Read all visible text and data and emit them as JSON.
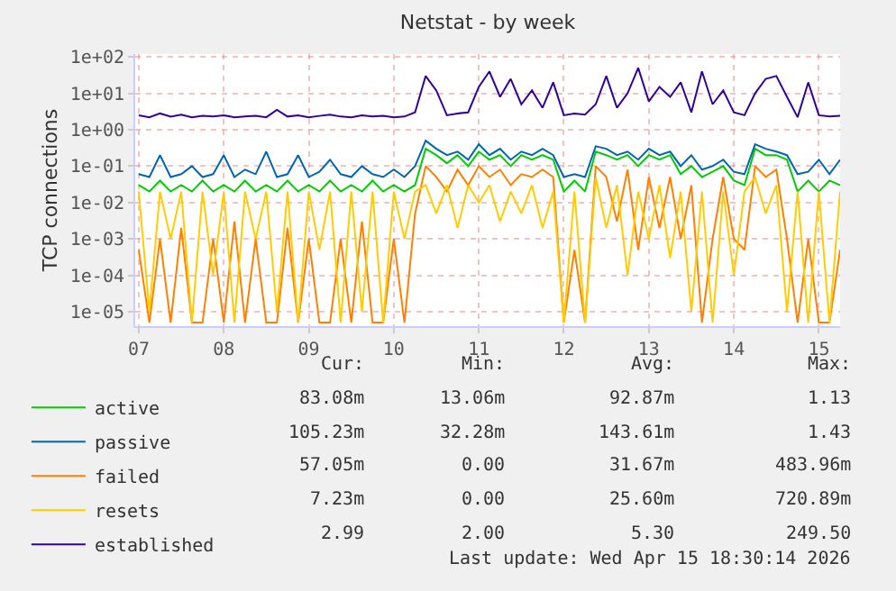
{
  "chart_data": {
    "type": "line",
    "title": "Netstat - by week",
    "ylabel": "TCP connections",
    "log": "y",
    "grid": true,
    "legend": "bottom left",
    "marker": "none",
    "line_style": "solid",
    "x": [
      "2026-04-07T00:00",
      "2026-04-07T03:00",
      "2026-04-07T06:00",
      "2026-04-07T09:00",
      "2026-04-07T12:00",
      "2026-04-07T15:00",
      "2026-04-07T18:00",
      "2026-04-07T21:00",
      "2026-04-08T00:00",
      "2026-04-08T03:00",
      "2026-04-08T06:00",
      "2026-04-08T09:00",
      "2026-04-08T12:00",
      "2026-04-08T15:00",
      "2026-04-08T18:00",
      "2026-04-08T21:00",
      "2026-04-09T00:00",
      "2026-04-09T03:00",
      "2026-04-09T06:00",
      "2026-04-09T09:00",
      "2026-04-09T12:00",
      "2026-04-09T15:00",
      "2026-04-09T18:00",
      "2026-04-09T21:00",
      "2026-04-10T00:00",
      "2026-04-10T03:00",
      "2026-04-10T06:00",
      "2026-04-10T09:00",
      "2026-04-10T12:00",
      "2026-04-10T15:00",
      "2026-04-10T18:00",
      "2026-04-10T21:00",
      "2026-04-11T00:00",
      "2026-04-11T03:00",
      "2026-04-11T06:00",
      "2026-04-11T09:00",
      "2026-04-11T12:00",
      "2026-04-11T15:00",
      "2026-04-11T18:00",
      "2026-04-11T21:00",
      "2026-04-12T00:00",
      "2026-04-12T03:00",
      "2026-04-12T06:00",
      "2026-04-12T09:00",
      "2026-04-12T12:00",
      "2026-04-12T15:00",
      "2026-04-12T18:00",
      "2026-04-12T21:00",
      "2026-04-13T00:00",
      "2026-04-13T03:00",
      "2026-04-13T06:00",
      "2026-04-13T09:00",
      "2026-04-13T12:00",
      "2026-04-13T15:00",
      "2026-04-13T18:00",
      "2026-04-13T21:00",
      "2026-04-14T00:00",
      "2026-04-14T03:00",
      "2026-04-14T06:00",
      "2026-04-14T09:00",
      "2026-04-14T12:00",
      "2026-04-14T15:00",
      "2026-04-14T18:00",
      "2026-04-14T21:00",
      "2026-04-15T00:00",
      "2026-04-15T03:00",
      "2026-04-15T06:00"
    ],
    "xlim": [
      "2026-04-06T23:00",
      "2026-04-15T06:00"
    ],
    "xticks": [
      {
        "value": "2026-04-07",
        "label": "07"
      },
      {
        "value": "2026-04-08",
        "label": "08"
      },
      {
        "value": "2026-04-09",
        "label": "09"
      },
      {
        "value": "2026-04-10",
        "label": "10"
      },
      {
        "value": "2026-04-11",
        "label": "11"
      },
      {
        "value": "2026-04-12",
        "label": "12"
      },
      {
        "value": "2026-04-13",
        "label": "13"
      },
      {
        "value": "2026-04-14",
        "label": "14"
      },
      {
        "value": "2026-04-15",
        "label": "15"
      }
    ],
    "ylim": [
      4e-06,
      120
    ],
    "yticks": [
      {
        "value": 1e-05,
        "label": "1e-05"
      },
      {
        "value": 0.0001,
        "label": "1e-04"
      },
      {
        "value": 0.001,
        "label": "1e-03"
      },
      {
        "value": 0.01,
        "label": "1e-02"
      },
      {
        "value": 0.1,
        "label": "1e-01"
      },
      {
        "value": 1,
        "label": "1e+00"
      },
      {
        "value": 10,
        "label": "1e+01"
      },
      {
        "value": 100,
        "label": "1e+02"
      }
    ],
    "series": [
      {
        "name": "active",
        "color": "#00cc00",
        "values": [
          0.03,
          0.02,
          0.04,
          0.02,
          0.03,
          0.02,
          0.04,
          0.02,
          0.03,
          0.02,
          0.04,
          0.02,
          0.03,
          0.02,
          0.04,
          0.02,
          0.03,
          0.02,
          0.04,
          0.02,
          0.03,
          0.02,
          0.04,
          0.02,
          0.03,
          0.02,
          0.03,
          0.3,
          0.2,
          0.12,
          0.2,
          0.1,
          0.25,
          0.15,
          0.2,
          0.1,
          0.2,
          0.15,
          0.2,
          0.15,
          0.02,
          0.04,
          0.02,
          0.25,
          0.2,
          0.15,
          0.2,
          0.1,
          0.2,
          0.15,
          0.2,
          0.06,
          0.1,
          0.05,
          0.07,
          0.1,
          0.04,
          0.03,
          0.3,
          0.2,
          0.2,
          0.15,
          0.02,
          0.04,
          0.02,
          0.04,
          0.03
        ]
      },
      {
        "name": "passive",
        "color": "#0066b3",
        "values": [
          0.06,
          0.05,
          0.2,
          0.05,
          0.06,
          0.1,
          0.05,
          0.06,
          0.2,
          0.05,
          0.08,
          0.06,
          0.25,
          0.05,
          0.06,
          0.2,
          0.05,
          0.07,
          0.15,
          0.06,
          0.05,
          0.1,
          0.06,
          0.05,
          0.08,
          0.05,
          0.1,
          0.5,
          0.3,
          0.2,
          0.25,
          0.15,
          0.4,
          0.2,
          0.3,
          0.15,
          0.25,
          0.2,
          0.3,
          0.2,
          0.05,
          0.06,
          0.05,
          0.35,
          0.3,
          0.2,
          0.25,
          0.15,
          0.3,
          0.2,
          0.25,
          0.1,
          0.2,
          0.08,
          0.1,
          0.15,
          0.07,
          0.06,
          0.4,
          0.3,
          0.25,
          0.2,
          0.06,
          0.07,
          0.15,
          0.06,
          0.15
        ]
      },
      {
        "name": "failed",
        "color": "#ff8000",
        "values": [
          0.0005,
          5e-06,
          0.001,
          5e-06,
          0.002,
          5e-06,
          5e-06,
          0.001,
          5e-06,
          0.003,
          5e-06,
          0.001,
          5e-06,
          5e-06,
          0.002,
          5e-06,
          0.001,
          5e-06,
          5e-06,
          0.001,
          5e-06,
          0.003,
          5e-06,
          5e-06,
          0.001,
          5e-06,
          0.005,
          0.1,
          0.05,
          0.02,
          0.08,
          0.03,
          0.1,
          0.05,
          0.08,
          0.03,
          0.06,
          0.05,
          0.08,
          0.05,
          5e-06,
          0.0005,
          5e-06,
          0.1,
          0.05,
          0.003,
          0.08,
          0.0005,
          0.05,
          0.002,
          0.05,
          0.001,
          0.03,
          5e-06,
          0.001,
          0.05,
          0.001,
          0.0005,
          0.1,
          0.05,
          0.08,
          0.001,
          5e-06,
          0.001,
          5e-06,
          5e-06,
          0.0005
        ]
      },
      {
        "name": "resets",
        "color": "#ffcc00",
        "values": [
          0.02,
          1e-05,
          0.02,
          0.001,
          0.02,
          5e-06,
          0.02,
          0.0001,
          0.02,
          5e-06,
          0.02,
          0.001,
          0.02,
          1e-05,
          0.02,
          5e-06,
          0.02,
          0.0005,
          0.02,
          5e-06,
          0.02,
          1e-05,
          0.02,
          5e-06,
          0.02,
          0.001,
          0.02,
          0.03,
          0.005,
          0.03,
          0.002,
          0.03,
          0.01,
          0.03,
          0.003,
          0.02,
          0.005,
          0.03,
          0.002,
          0.02,
          5e-06,
          0.02,
          5e-06,
          0.05,
          0.002,
          0.03,
          0.0001,
          0.02,
          0.001,
          0.03,
          0.0003,
          0.02,
          1e-05,
          0.02,
          5e-06,
          0.02,
          0.0001,
          0.02,
          0.05,
          0.005,
          0.03,
          1e-05,
          0.02,
          5e-06,
          0.02,
          5e-06,
          0.02
        ]
      },
      {
        "name": "established",
        "color": "#330099",
        "values": [
          2.5,
          2.2,
          2.8,
          2.3,
          2.6,
          2.2,
          2.4,
          2.3,
          2.5,
          2.2,
          2.3,
          2.4,
          2.2,
          3.5,
          2.3,
          2.5,
          2.2,
          2.4,
          2.6,
          2.3,
          2.2,
          2.5,
          2.3,
          2.4,
          2.2,
          2.3,
          3,
          30,
          12,
          2.5,
          2.8,
          3,
          15,
          40,
          8,
          25,
          5,
          12,
          4,
          20,
          2.5,
          2.8,
          2.6,
          5,
          30,
          4,
          10,
          50,
          6,
          15,
          8,
          20,
          3,
          40,
          5,
          12,
          3,
          2.5,
          10,
          25,
          30,
          8,
          2.2,
          20,
          2.5,
          2.3,
          2.4
        ]
      }
    ],
    "annotations": [
      "Cur:",
      "Min:",
      "Avg:",
      "Max:",
      "83.08m",
      "13.06m",
      "92.87m",
      "1.13",
      "105.23m",
      "32.28m",
      "143.61m",
      "1.43",
      "57.05m",
      "0.00",
      "31.67m",
      "483.96m",
      "7.23m",
      "0.00",
      "25.60m",
      "720.89m",
      "2.99",
      "2.00",
      "5.30",
      "249.50",
      "Last update: Wed Apr 15 18:30:14 2026"
    ]
  }
}
